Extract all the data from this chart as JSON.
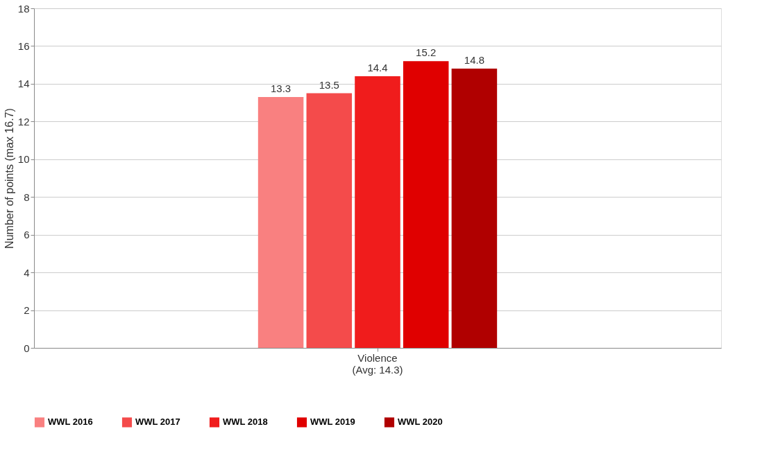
{
  "chart_data": {
    "type": "bar",
    "ylabel": "Number of points (max 16.7)",
    "categories": [
      "Violence\n(Avg: 14.3)"
    ],
    "series": [
      {
        "name": "WWL 2016",
        "color": "#f98080",
        "values": [
          13.3
        ]
      },
      {
        "name": "WWL 2017",
        "color": "#f44b4b",
        "values": [
          13.5
        ]
      },
      {
        "name": "WWL 2018",
        "color": "#f01c1c",
        "values": [
          14.4
        ]
      },
      {
        "name": "WWL 2019",
        "color": "#e00000",
        "values": [
          15.2
        ]
      },
      {
        "name": "WWL 2020",
        "color": "#b00000",
        "values": [
          14.8
        ]
      }
    ],
    "ylim": [
      0,
      18
    ],
    "yticks": [
      0,
      2,
      4,
      6,
      8,
      10,
      12,
      14,
      16,
      18
    ],
    "grid": "y",
    "data_labels": true,
    "legend": "bottom"
  }
}
